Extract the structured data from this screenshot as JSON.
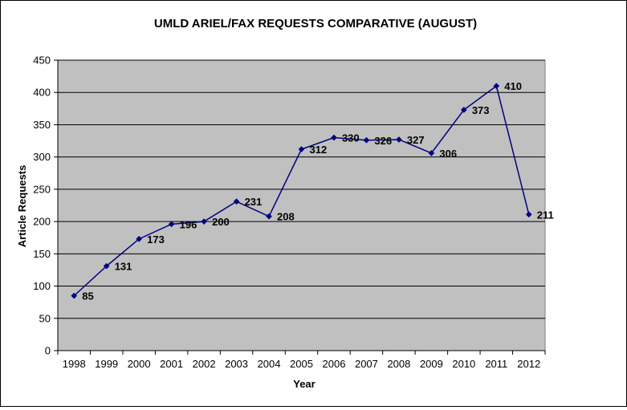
{
  "chart_data": {
    "type": "line",
    "title": "UMLD ARIEL/FAX REQUESTS COMPARATIVE (AUGUST)",
    "xlabel": "Year",
    "ylabel": "Article Requests",
    "categories": [
      "1998",
      "1999",
      "2000",
      "2001",
      "2002",
      "2003",
      "2004",
      "2005",
      "2006",
      "2007",
      "2008",
      "2009",
      "2010",
      "2011",
      "2012"
    ],
    "series": [
      {
        "values": [
          85,
          131,
          173,
          196,
          200,
          231,
          208,
          312,
          330,
          326,
          327,
          306,
          373,
          410,
          211
        ]
      }
    ],
    "data_labels": [
      "85",
      "131",
      "173",
      "196",
      "200",
      "231",
      "208",
      "312",
      "330",
      "326",
      "327",
      "306",
      "373",
      "410",
      "211"
    ],
    "y_ticks": [
      "0",
      "50",
      "100",
      "150",
      "200",
      "250",
      "300",
      "350",
      "400",
      "450"
    ],
    "ylim": [
      0,
      450
    ],
    "grid": true,
    "legend": "none",
    "colors": {
      "line": "#000080",
      "plot_background": "#c0c0c0",
      "gridline": "#000000"
    }
  }
}
